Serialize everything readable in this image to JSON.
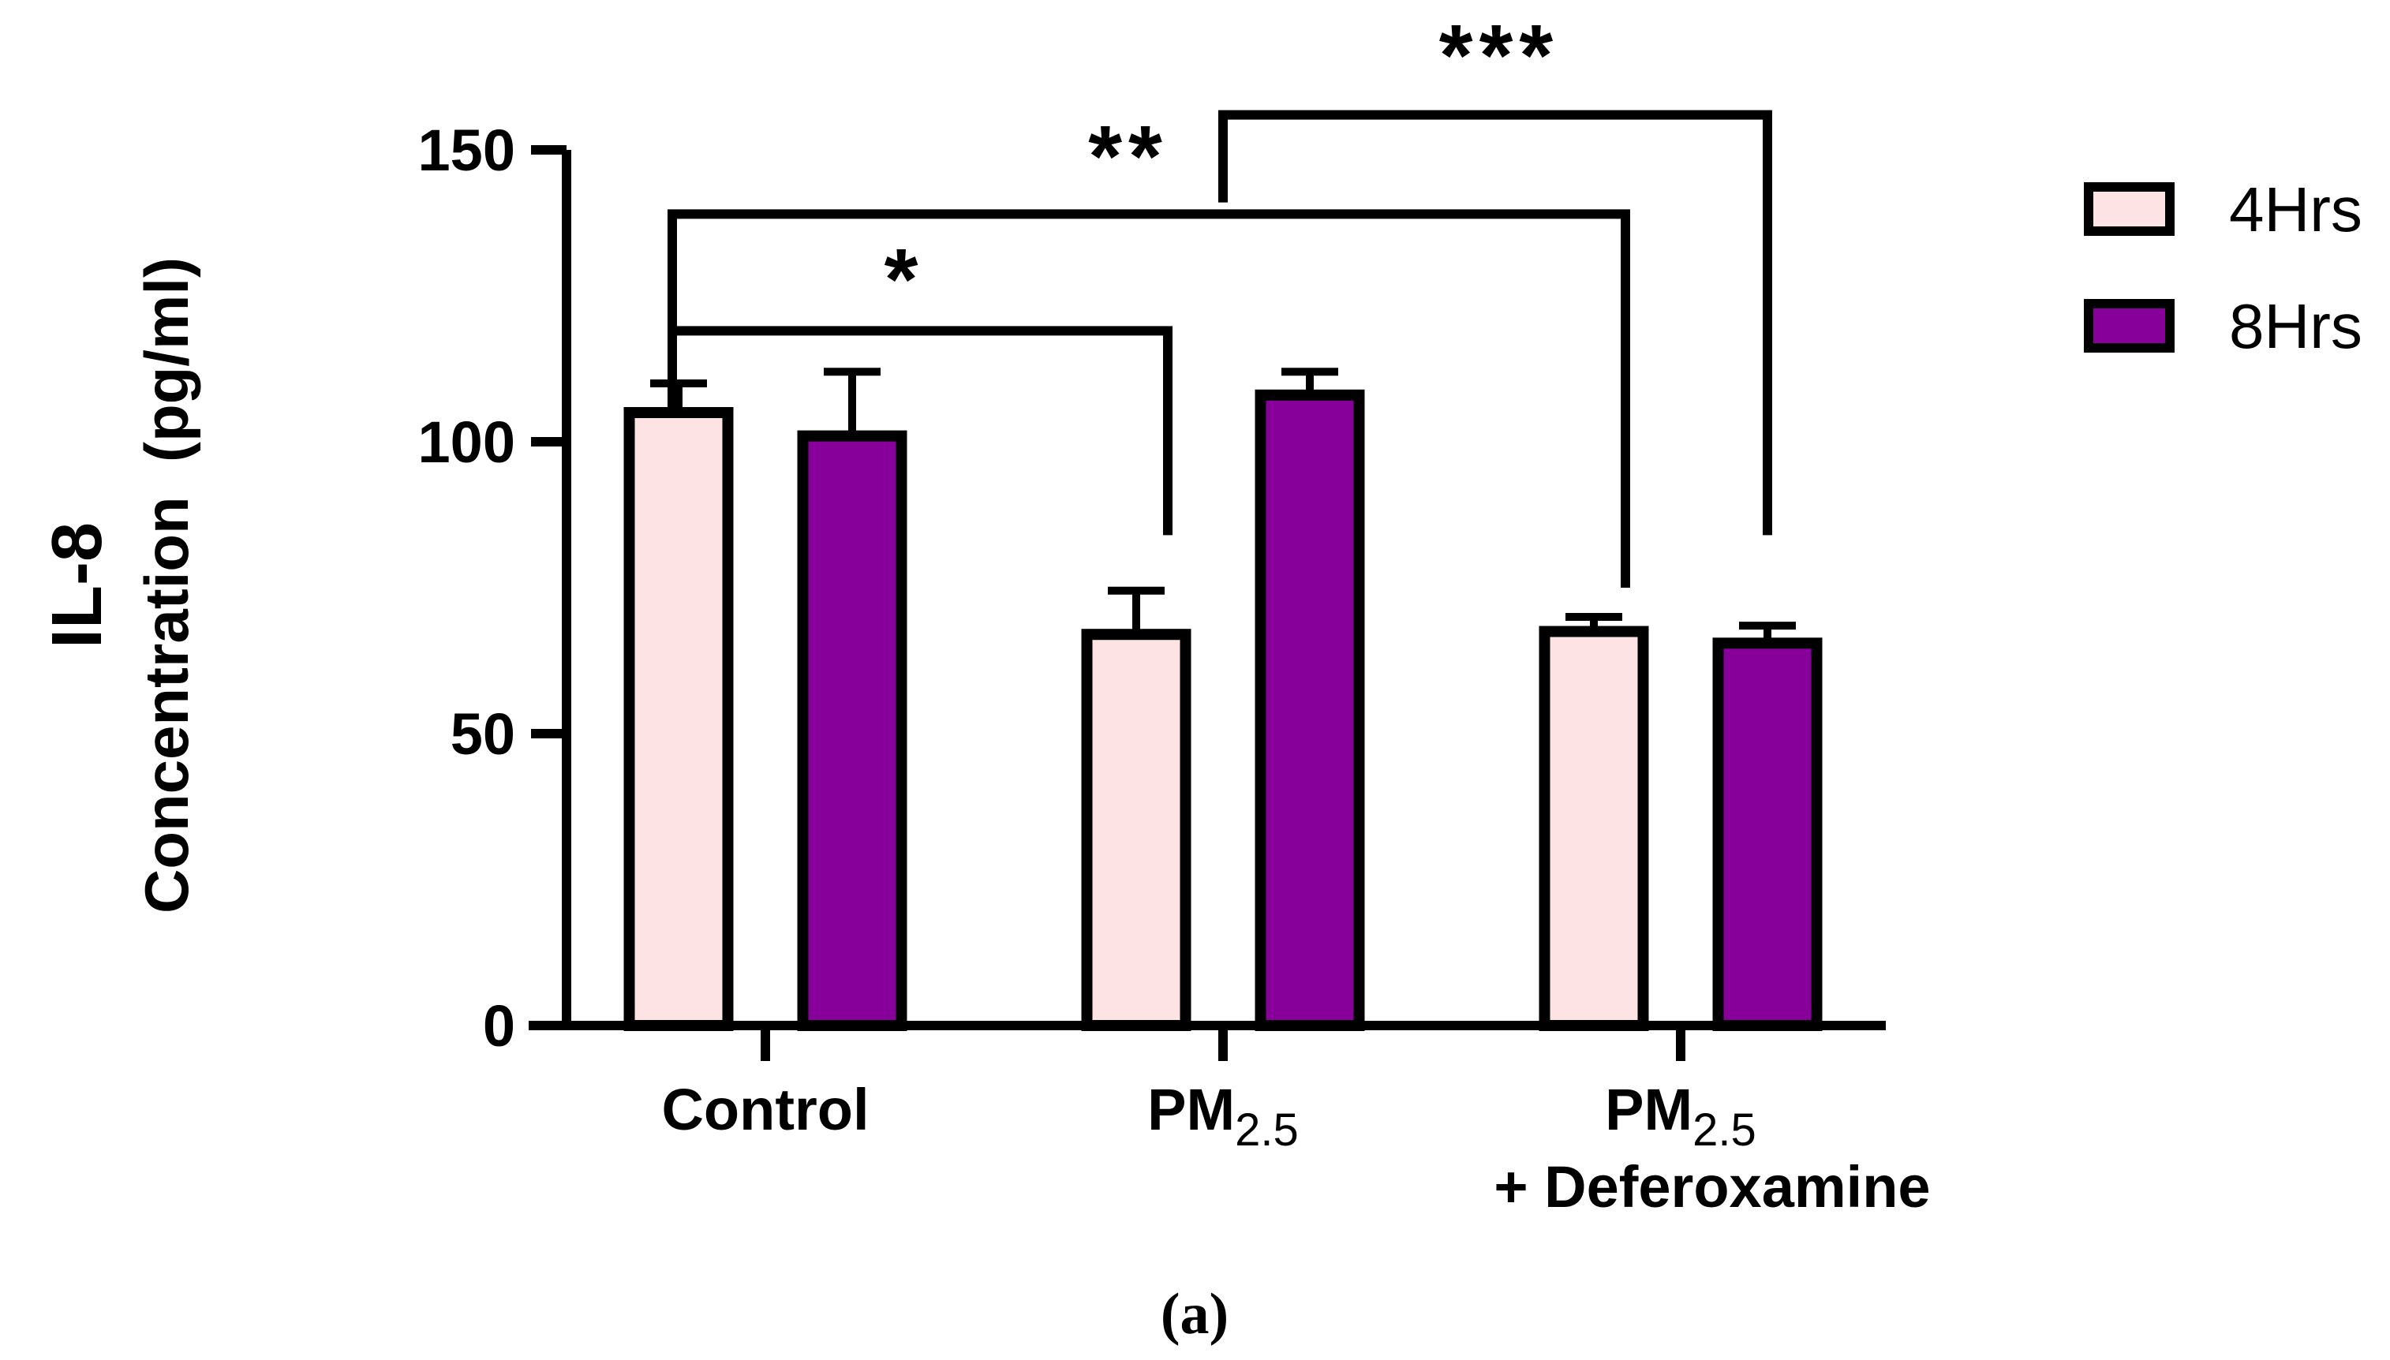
{
  "chart_data": {
    "type": "bar",
    "title": "",
    "ylabel": "IL-8",
    "ylabel_sub": "Concentration  (pg/ml)",
    "xlabel": "",
    "ylim": [
      0,
      150
    ],
    "yticks": [
      0,
      50,
      100,
      150
    ],
    "grid": false,
    "legend_position": "top-right",
    "categories": [
      {
        "main": "Control",
        "sub": "",
        "line2": ""
      },
      {
        "main": "PM",
        "sub": "2.5",
        "line2": ""
      },
      {
        "main": "PM",
        "sub": "2.5",
        "line2": "+ Deferoxamine"
      }
    ],
    "series": [
      {
        "name": "4Hrs",
        "color": "#fde3e3",
        "values": [
          105,
          67,
          67.5
        ],
        "errors": [
          5,
          7.5,
          2.5
        ]
      },
      {
        "name": "8Hrs",
        "color": "#860099",
        "values": [
          101,
          108,
          65.5
        ],
        "errors": [
          11,
          4,
          3
        ]
      }
    ],
    "significance": [
      {
        "label": "*",
        "from": {
          "category": 0,
          "series": 0
        },
        "to": {
          "category": 1,
          "series": 0
        },
        "y": 119,
        "drop_to": 84
      },
      {
        "label": "**",
        "from": {
          "category": 0,
          "series": 0
        },
        "to": {
          "category": 2,
          "series": 0
        },
        "y": 139,
        "drop_to": 75
      },
      {
        "label": "***",
        "from_point": {
          "category": 1,
          "between": true
        },
        "to": {
          "category": 2,
          "series": 1
        },
        "y": 156,
        "drop_to": 84,
        "from_drop_to": 141
      }
    ],
    "caption": "(a)"
  }
}
